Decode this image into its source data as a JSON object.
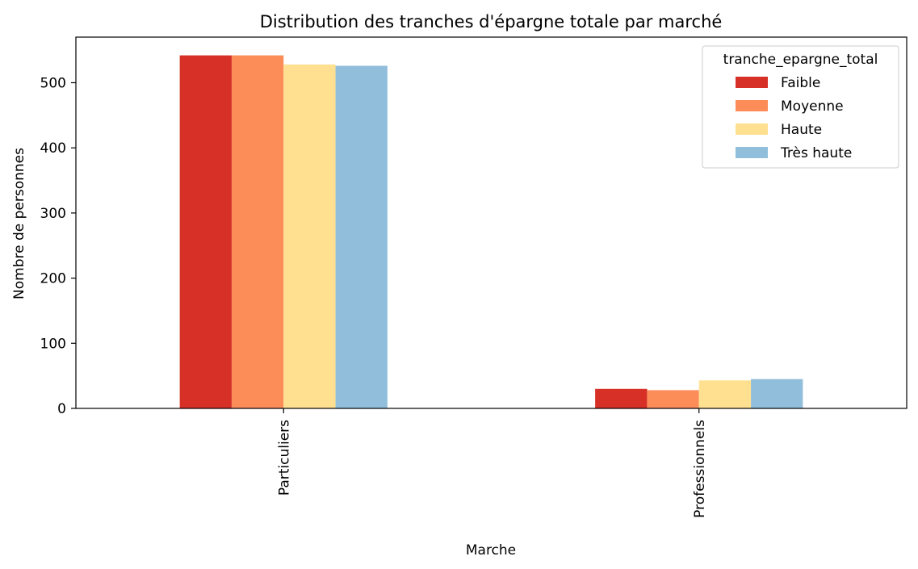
{
  "chart_data": {
    "type": "bar",
    "title": "Distribution des tranches d'épargne totale par marché",
    "xlabel": "Marche",
    "ylabel": "Nombre de personnes",
    "categories": [
      "Particuliers",
      "Professionnels"
    ],
    "legend_title": "tranche_epargne_total",
    "legend_position": "top-right",
    "series": [
      {
        "name": "Faible",
        "color": "#d73027",
        "values": [
          542,
          30
        ]
      },
      {
        "name": "Moyenne",
        "color": "#fc8d59",
        "values": [
          542,
          28
        ]
      },
      {
        "name": "Haute",
        "color": "#fee090",
        "values": [
          528,
          43
        ]
      },
      {
        "name": "Très haute",
        "color": "#91bfdb",
        "values": [
          526,
          45
        ]
      }
    ],
    "ylim": [
      0,
      570
    ],
    "yticks": [
      0,
      100,
      200,
      300,
      400,
      500
    ],
    "grid": false
  }
}
